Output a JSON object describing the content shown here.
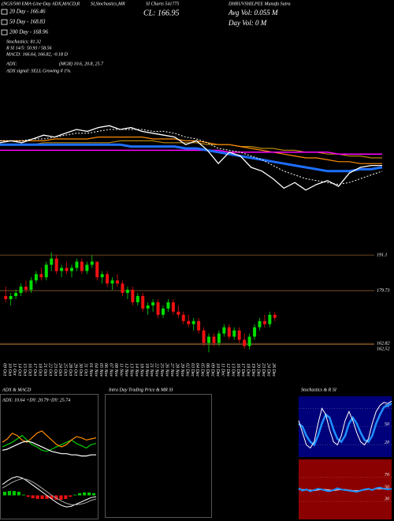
{
  "header": {
    "title_1": "(NGS/500 EMA-Line-Day ADX,MACD,R",
    "title_2": "SI,Stochastics,MR",
    "title_3": "SI Charts 541775",
    "title_4": "DHRUVSHILPEE Munafa Sutra",
    "close": "CL: 166.95",
    "ema": [
      "20 Day - 166.46",
      "50 Day - 168.83",
      "200 Day - 168.96"
    ],
    "indicators": [
      "Stochastics: 81.32",
      "R SI 14/5: 50.93 / 58.56",
      "MACD: 166.64, 166.82, -0.18 D"
    ],
    "volume": [
      "Avg Vol: 0.055  M",
      "Day Vol: 0  M"
    ],
    "adx_label": "ADX:",
    "adx_values": "(MGR) 10.6, 20.8, 25.7",
    "adx_signal": "ADX signal: SELL Growing # 1%.",
    "intraday_title": "Intra Day Trading Price & MR SI"
  },
  "chart_data": [
    {
      "type": "line",
      "ylim": [
        150,
        200
      ],
      "series": [
        {
          "color": "#b8860b",
          "width": 1.2,
          "values": [
            182,
            182,
            182,
            182,
            183,
            183,
            183,
            183,
            183,
            183,
            183,
            184,
            184,
            184,
            184,
            183,
            183,
            183,
            183,
            182,
            182,
            182,
            181,
            181,
            180,
            180,
            179,
            179,
            178,
            178,
            177,
            177,
            176,
            176,
            175,
            175
          ]
        },
        {
          "color": "#ff8c00",
          "width": 1.2,
          "values": [
            184,
            184,
            184,
            184,
            184,
            185,
            185,
            185,
            185,
            186,
            186,
            186,
            186,
            186,
            185,
            185,
            185,
            184,
            184,
            183,
            182,
            182,
            181,
            180,
            179,
            178,
            177,
            176,
            175,
            175,
            174,
            173,
            173,
            172,
            172,
            172
          ]
        },
        {
          "color": "#ff00ff",
          "width": 1.5,
          "values": [
            179,
            179,
            179,
            179,
            179,
            179,
            179,
            179,
            179,
            179,
            179,
            179,
            179,
            179,
            179,
            179,
            179,
            179,
            179,
            179,
            179,
            178,
            178,
            178,
            178,
            178,
            178,
            178,
            178,
            178,
            178,
            177,
            177,
            177,
            177,
            177
          ]
        },
        {
          "color": "#1e6fff",
          "width": 3,
          "values": [
            182,
            182,
            182,
            182,
            182,
            182,
            182,
            182,
            182,
            182,
            182,
            182,
            181,
            181,
            181,
            181,
            181,
            180,
            180,
            179,
            178,
            177,
            176,
            175,
            174,
            173,
            172,
            171,
            170,
            169,
            168,
            168,
            168,
            169,
            169,
            170
          ]
        },
        {
          "color": "#ffffff",
          "width": 1,
          "dash": true,
          "values": [
            184,
            184,
            184,
            185,
            185,
            186,
            187,
            188,
            188,
            189,
            190,
            190,
            190,
            190,
            189,
            189,
            188,
            186,
            185,
            183,
            180,
            179,
            178,
            176,
            174,
            171,
            168,
            166,
            164,
            163,
            162,
            161,
            162,
            164,
            166,
            168
          ]
        },
        {
          "color": "#ffffff",
          "width": 1.3,
          "values": [
            183,
            184,
            183,
            185,
            187,
            186,
            188,
            190,
            189,
            191,
            192,
            190,
            191,
            189,
            188,
            187,
            186,
            182,
            184,
            179,
            172,
            178,
            176,
            170,
            168,
            164,
            159,
            162,
            158,
            161,
            163,
            160,
            167,
            170,
            171,
            171
          ]
        }
      ]
    },
    {
      "type": "candlestick",
      "ylim": [
        157.8,
        192.4
      ],
      "yticks": [
        191.1,
        179.73,
        162.82,
        162.52
      ],
      "grid_color": "#8b5a2b",
      "up_color": "#00dd00",
      "down_color": "#ee1111",
      "categories": [
        "09 Oct",
        "10 Oct",
        "11 Oct",
        "14 Oct",
        "15 Oct",
        "16 Oct",
        "17 Oct",
        "18 Oct",
        "21 Oct",
        "22 Oct",
        "23 Oct",
        "24 Oct",
        "25 Oct",
        "28 Oct",
        "29 Oct",
        "30 Oct",
        "31 Oct",
        "01 Nov",
        "04 Nov",
        "05 Nov",
        "06 Nov",
        "07 Nov",
        "08 Nov",
        "11 Nov",
        "12 Nov",
        "13 Nov",
        "14 Nov",
        "18 Nov",
        "19 Nov",
        "21 Nov",
        "22 Nov",
        "25 Nov",
        "26 Nov",
        "27 Nov",
        "28 Nov",
        "29 Nov",
        "02 Dec",
        "03 Dec",
        "04 Dec",
        "05 Dec",
        "06 Dec",
        "09 Dec",
        "10 Dec",
        "11 Dec",
        "12 Dec",
        "13 Dec",
        "16 Dec",
        "17 Dec",
        "18 Dec",
        "19 Dec",
        "20 Dec",
        "23 Dec",
        "24 Dec",
        "26 Dec"
      ],
      "ohlc": [
        [
          178,
          181,
          176,
          177
        ],
        [
          177,
          179,
          175,
          178
        ],
        [
          178,
          180,
          177,
          179
        ],
        [
          179,
          182,
          178,
          181
        ],
        [
          181,
          183,
          179,
          180
        ],
        [
          180,
          184,
          179,
          183
        ],
        [
          183,
          186,
          182,
          185
        ],
        [
          185,
          187,
          183,
          184
        ],
        [
          184,
          189,
          183,
          188
        ],
        [
          188,
          192,
          186,
          190
        ],
        [
          190,
          191,
          185,
          186
        ],
        [
          186,
          188,
          184,
          187
        ],
        [
          187,
          189,
          185,
          186
        ],
        [
          186,
          188,
          184,
          187
        ],
        [
          187,
          190,
          186,
          189
        ],
        [
          189,
          190,
          185,
          186
        ],
        [
          186,
          189,
          185,
          188
        ],
        [
          188,
          191,
          187,
          189
        ],
        [
          189,
          189,
          183,
          184
        ],
        [
          184,
          186,
          182,
          185
        ],
        [
          185,
          186,
          181,
          182
        ],
        [
          182,
          184,
          180,
          183
        ],
        [
          183,
          185,
          181,
          182
        ],
        [
          182,
          183,
          178,
          179
        ],
        [
          179,
          181,
          177,
          180
        ],
        [
          180,
          181,
          175,
          176
        ],
        [
          176,
          179,
          175,
          178
        ],
        [
          178,
          179,
          173,
          174
        ],
        [
          174,
          176,
          172,
          175
        ],
        [
          175,
          177,
          173,
          176
        ],
        [
          176,
          177,
          171,
          172
        ],
        [
          172,
          175,
          171,
          174
        ],
        [
          174,
          177,
          173,
          176
        ],
        [
          176,
          177,
          172,
          173
        ],
        [
          173,
          175,
          171,
          172
        ],
        [
          172,
          173,
          169,
          170
        ],
        [
          170,
          172,
          168,
          169
        ],
        [
          169,
          171,
          167,
          170
        ],
        [
          170,
          171,
          166,
          167
        ],
        [
          167,
          168,
          162,
          163
        ],
        [
          163,
          166,
          160,
          165
        ],
        [
          165,
          166,
          162,
          163
        ],
        [
          163,
          167,
          162,
          166
        ],
        [
          166,
          169,
          165,
          168
        ],
        [
          168,
          169,
          164,
          165
        ],
        [
          165,
          168,
          164,
          167
        ],
        [
          167,
          168,
          163,
          164
        ],
        [
          164,
          166,
          161,
          162
        ],
        [
          162,
          166,
          161,
          165
        ],
        [
          165,
          169,
          164,
          168
        ],
        [
          168,
          171,
          167,
          170
        ],
        [
          170,
          172,
          168,
          169
        ],
        [
          169,
          173,
          168,
          172
        ],
        [
          172,
          173,
          170,
          171
        ]
      ]
    },
    {
      "type": "line",
      "title": "ADX & MACD",
      "subtitle": "ADX: 10.64 +DY: 20.79 -DY: 25.74",
      "ylim": [
        0,
        50
      ],
      "series": [
        {
          "color": "#00cc00",
          "width": 1.2,
          "values": [
            18,
            20,
            22,
            25,
            28,
            24,
            20,
            18,
            15,
            14,
            16,
            18,
            20,
            22,
            24,
            21,
            19,
            17,
            20,
            21
          ]
        },
        {
          "color": "#ff8c00",
          "width": 1.2,
          "values": [
            22,
            25,
            30,
            28,
            24,
            22,
            26,
            30,
            32,
            28,
            24,
            20,
            18,
            20,
            24,
            27,
            26,
            24,
            25,
            26
          ]
        },
        {
          "color": "#ffffff",
          "width": 1.2,
          "values": [
            15,
            16,
            18,
            20,
            22,
            23,
            22,
            20,
            18,
            16,
            14,
            13,
            12,
            12,
            11,
            11,
            10,
            10,
            11,
            11
          ]
        }
      ]
    },
    {
      "type": "bar",
      "ylim": [
        -3,
        3
      ],
      "up_color": "#00cc00",
      "down_color": "#ee1111",
      "values": [
        0.5,
        0.6,
        0.6,
        0.5,
        0.1,
        -0.2,
        -0.4,
        -0.5,
        -0.5,
        -0.5,
        -0.5,
        -0.6,
        -0.6,
        -0.5,
        -0.2,
        0.1,
        0.3,
        0.4,
        0.4,
        0.3
      ],
      "series": [
        {
          "color": "#ffffff",
          "width": 1,
          "values": [
            1.5,
            2,
            2.4,
            2.6,
            2.4,
            2,
            1.5,
            1,
            0.5,
            0,
            -0.5,
            -1,
            -1.4,
            -1.6,
            -1.5,
            -1.2,
            -0.9,
            -0.6,
            -0.3,
            -0.2
          ]
        },
        {
          "color": "#aaaaaa",
          "width": 1,
          "values": [
            1,
            1.4,
            1.8,
            2.1,
            2.3,
            2.2,
            1.9,
            1.5,
            1,
            0.5,
            0,
            -0.4,
            -0.8,
            -1.1,
            -1.3,
            -1.3,
            -1.2,
            -1,
            -0.7,
            -0.5
          ]
        }
      ]
    },
    {
      "type": "line",
      "title": "Stochastics & R SI",
      "ylim": [
        0,
        100
      ],
      "yticks": [
        80,
        50,
        20
      ],
      "background": "#00007a",
      "series": [
        {
          "color": "#1e90ff",
          "width": 2.5,
          "values": [
            55,
            50,
            35,
            25,
            20,
            35,
            55,
            70,
            65,
            45,
            30,
            25,
            35,
            55,
            65,
            55,
            40,
            28,
            25,
            35,
            55,
            70,
            82,
            85,
            88
          ]
        },
        {
          "color": "#ffffff",
          "width": 1,
          "values": [
            60,
            40,
            20,
            15,
            25,
            55,
            80,
            70,
            45,
            25,
            20,
            35,
            60,
            75,
            60,
            40,
            25,
            20,
            30,
            55,
            75,
            85,
            90,
            88,
            92
          ]
        }
      ]
    },
    {
      "type": "line",
      "ylim": [
        0,
        100
      ],
      "yticks": [
        70,
        50,
        30
      ],
      "background": "#8b0000",
      "series": [
        {
          "color": "#ffffff",
          "width": 0.8,
          "values": [
            50,
            50,
            49,
            49,
            48,
            49,
            50,
            50,
            49,
            48,
            49,
            50,
            50,
            49,
            48,
            48,
            48,
            49,
            50,
            50,
            51,
            51,
            51,
            51,
            51
          ]
        },
        {
          "color": "#1e90ff",
          "width": 2,
          "values": [
            52,
            48,
            50,
            47,
            49,
            51,
            50,
            48,
            47,
            49,
            52,
            50,
            49,
            48,
            47,
            46,
            48,
            50,
            51,
            49,
            52,
            53,
            51,
            50,
            51
          ]
        }
      ]
    }
  ]
}
